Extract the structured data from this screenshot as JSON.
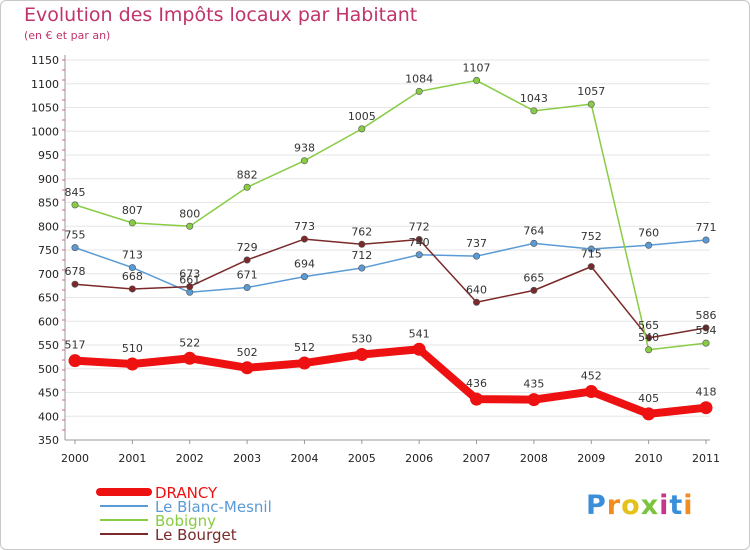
{
  "header": {
    "title": "Evolution des Impôts locaux par Habitant",
    "subtitle": "(en € et par an)"
  },
  "logo": {
    "text": "Proxiti",
    "colors": [
      "#3a8fd8",
      "#f28c1e",
      "#e4c21a",
      "#7cc440",
      "#c6368a"
    ]
  },
  "chart_data": {
    "type": "line",
    "title": "Evolution des Impôts locaux par Habitant",
    "subtitle": "(en € et par an)",
    "xlabel": "",
    "ylabel": "",
    "x": [
      "2000",
      "2001",
      "2002",
      "2003",
      "2004",
      "2005",
      "2006",
      "2007",
      "2008",
      "2009",
      "2010",
      "2011"
    ],
    "ylim": [
      350,
      1150
    ],
    "yticks": [
      350,
      400,
      450,
      500,
      550,
      600,
      650,
      700,
      750,
      800,
      850,
      900,
      950,
      1000,
      1050,
      1100,
      1150
    ],
    "grid": "horizontal",
    "legend_position": "bottom-left",
    "series": [
      {
        "name": "DRANCY",
        "color": "#ee1111",
        "values": [
          517,
          510,
          522,
          502,
          512,
          530,
          541,
          436,
          435,
          452,
          405,
          418
        ]
      },
      {
        "name": "Le Blanc-Mesnil",
        "color": "#5b9bd5",
        "values": [
          755,
          713,
          661,
          671,
          694,
          712,
          740,
          737,
          764,
          752,
          760,
          771
        ]
      },
      {
        "name": "Bobigny",
        "color": "#88cc44",
        "values": [
          845,
          807,
          800,
          882,
          938,
          1005,
          1084,
          1107,
          1043,
          1057,
          540,
          554
        ]
      },
      {
        "name": "Le Bourget",
        "color": "#7a2a2a",
        "values": [
          678,
          668,
          673,
          729,
          773,
          762,
          772,
          640,
          665,
          715,
          565,
          586
        ]
      }
    ]
  }
}
